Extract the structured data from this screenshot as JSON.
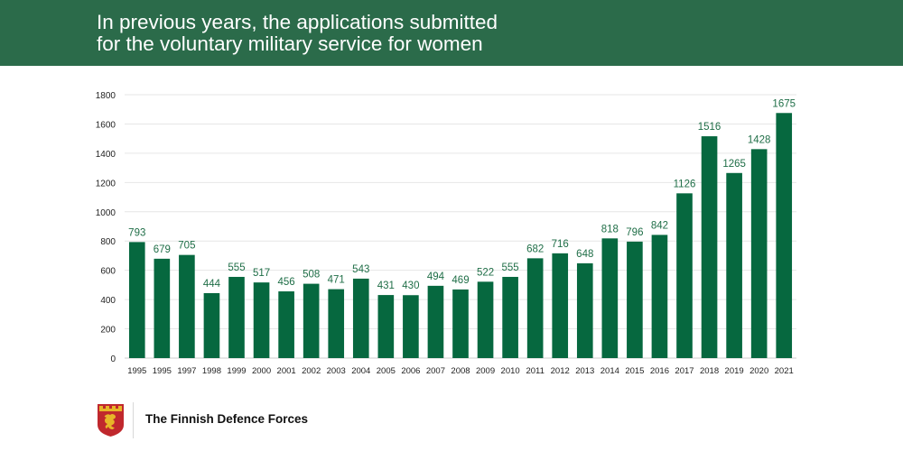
{
  "header": {
    "title_line1": "In previous years, the applications submitted",
    "title_line2": "for the voluntary military service for women"
  },
  "footer": {
    "organization": "The Finnish Defence Forces"
  },
  "colors": {
    "banner": "#2b6b4a",
    "bar": "#06683f",
    "label": "#1f6e47",
    "grid": "#e6e6e6",
    "logo_red": "#c0282d",
    "logo_gold": "#e7b628"
  },
  "icons": {
    "logo": "finnish-defence-forces-lion-crest-icon"
  },
  "chart_data": {
    "type": "bar",
    "title": "",
    "xlabel": "",
    "ylabel": "",
    "ylim": [
      0,
      1800
    ],
    "yticks": [
      0,
      200,
      400,
      600,
      800,
      1000,
      1200,
      1400,
      1600,
      1800
    ],
    "grid": true,
    "legend": "none",
    "categories": [
      "1995",
      "1995",
      "1997",
      "1998",
      "1999",
      "2000",
      "2001",
      "2002",
      "2003",
      "2004",
      "2005",
      "2006",
      "2007",
      "2008",
      "2009",
      "2010",
      "2011",
      "2012",
      "2013",
      "2014",
      "2015",
      "2016",
      "2017",
      "2018",
      "2019",
      "2020",
      "2021"
    ],
    "values": [
      793,
      679,
      705,
      444,
      555,
      517,
      456,
      508,
      471,
      543,
      431,
      430,
      494,
      469,
      522,
      555,
      682,
      716,
      648,
      818,
      796,
      842,
      1126,
      1516,
      1265,
      1428,
      1675
    ]
  }
}
